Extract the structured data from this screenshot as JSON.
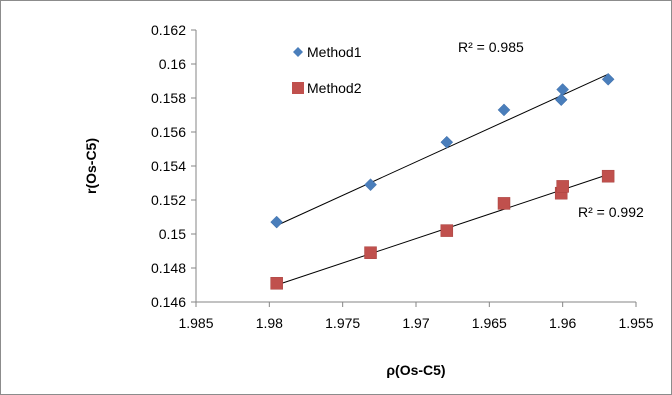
{
  "chart_data": {
    "type": "scatter",
    "title": "",
    "xlabel": "ρ(Os-C5)",
    "ylabel": "r(Os-C5)",
    "xlim": [
      1.985,
      1.955
    ],
    "x_reversed": true,
    "ylim": [
      0.146,
      0.162
    ],
    "x_ticks": [
      "1.985",
      "1.98",
      "1.975",
      "1.97",
      "1.965",
      "1.96",
      "1.955"
    ],
    "y_ticks": [
      "0.146",
      "0.148",
      "0.15",
      "0.152",
      "0.154",
      "0.156",
      "0.158",
      "0.16",
      "0.162"
    ],
    "grid": false,
    "legend_position": "top-left",
    "series": [
      {
        "name": "Method1",
        "marker": "diamond",
        "color": "#4a7ebb",
        "x": [
          1.9795,
          1.9731,
          1.9679,
          1.964,
          1.9601,
          1.96,
          1.9569
        ],
        "y": [
          0.1507,
          0.1529,
          0.1554,
          0.1573,
          0.1579,
          0.1585,
          0.1591
        ],
        "trendline": {
          "x": [
            1.9795,
            1.9569
          ],
          "y": [
            0.1505,
            0.1594
          ]
        },
        "r2_label": "R² = 0.985"
      },
      {
        "name": "Method2",
        "marker": "square",
        "color": "#c0504d",
        "x": [
          1.9795,
          1.9731,
          1.9679,
          1.964,
          1.9601,
          1.96,
          1.9569
        ],
        "y": [
          0.1471,
          0.1489,
          0.1502,
          0.1518,
          0.1524,
          0.1528,
          0.1534
        ],
        "trendline": {
          "x": [
            1.9795,
            1.9569
          ],
          "y": [
            0.147,
            0.1535
          ]
        },
        "r2_label": "R² = 0.992"
      }
    ]
  }
}
